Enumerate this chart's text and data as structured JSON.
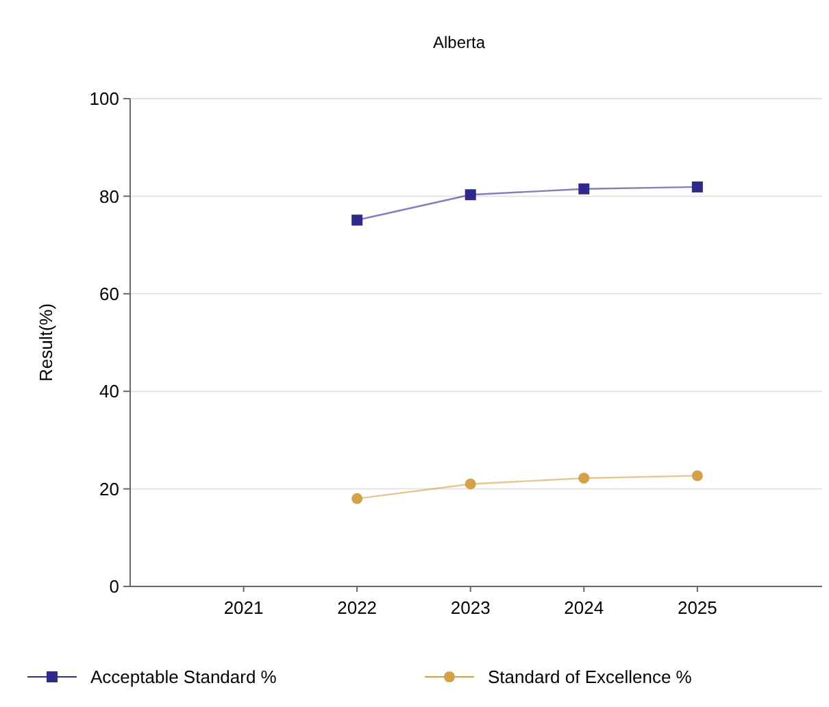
{
  "chart_data": {
    "type": "line",
    "title": "Alberta",
    "ylabel": "Result(%)",
    "categories": [
      "2021",
      "2022",
      "2023",
      "2024",
      "2025"
    ],
    "series": [
      {
        "name": "Acceptable Standard %",
        "color": "#2e2a8a",
        "marker": "square",
        "values": [
          null,
          75.1,
          80.3,
          81.5,
          81.9
        ]
      },
      {
        "name": "Standard of Excellence %",
        "color": "#d4a048",
        "marker": "circle",
        "values": [
          null,
          18.0,
          21.0,
          22.2,
          22.7
        ]
      }
    ],
    "ylim": [
      0,
      100
    ],
    "yticks": [
      0,
      20,
      40,
      60,
      80,
      100
    ],
    "grid": "y",
    "legend": "bottom",
    "line_style": "solid"
  }
}
